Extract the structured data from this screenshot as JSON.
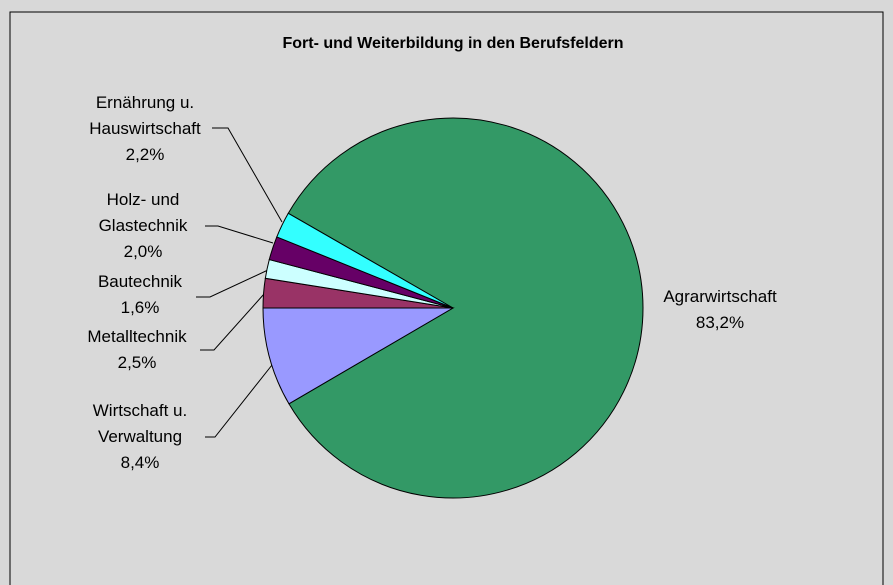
{
  "chart_data": {
    "type": "pie",
    "title": "Fort- und Weiterbildung in den Berufsfeldern",
    "categories": [
      "Agrarwirtschaft",
      "Wirtschaft u. Verwaltung",
      "Metalltechnik",
      "Bautechnik",
      "Holz- und Glastechnik",
      "Ernährung u. Hauswirtschaft"
    ],
    "values": [
      83.2,
      8.4,
      2.5,
      1.6,
      2.0,
      2.2
    ],
    "value_labels": [
      "83,2%",
      "8,4%",
      "2,5%",
      "1,6%",
      "2,0%",
      "2,2%"
    ],
    "colors": [
      "#339966",
      "#9999ff",
      "#993366",
      "#ccffff",
      "#660066",
      "#33ffff"
    ]
  }
}
